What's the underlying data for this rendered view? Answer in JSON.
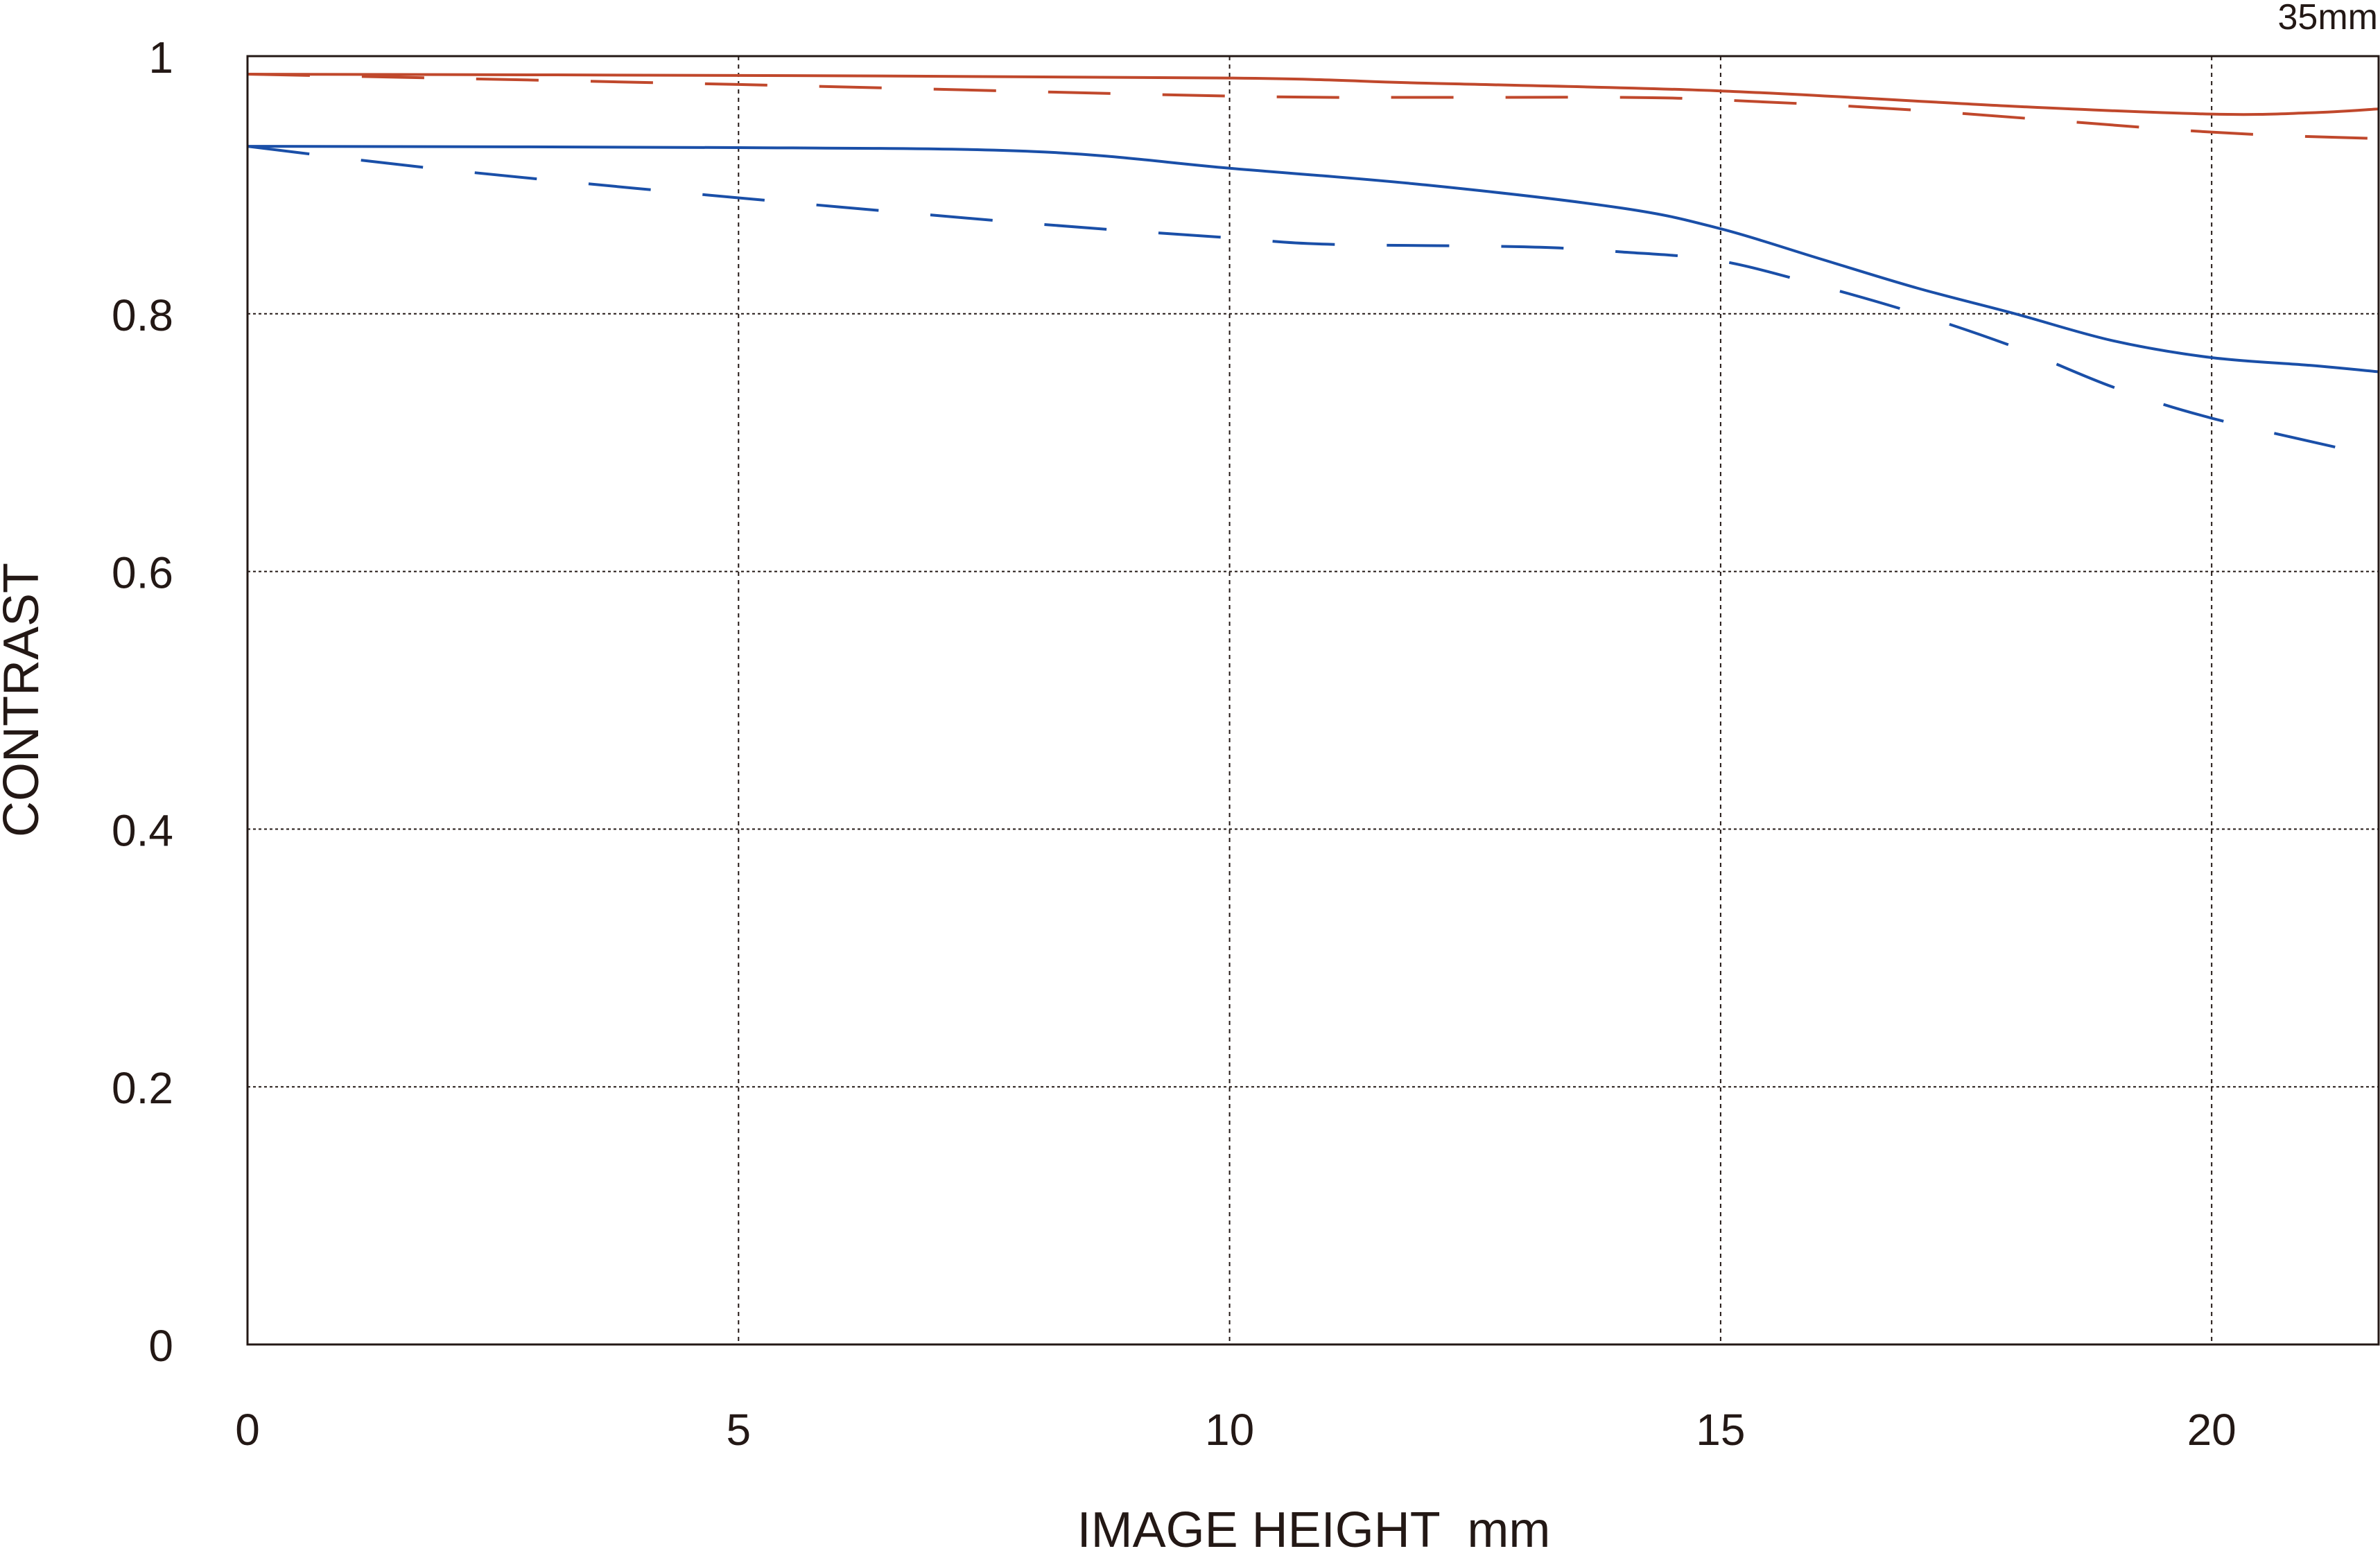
{
  "chart_data": {
    "type": "line",
    "title": "35mm",
    "xlabel": "IMAGE HEIGHT  mm",
    "ylabel": "CONTRAST",
    "xlim": [
      0,
      21.7
    ],
    "ylim": [
      0,
      1
    ],
    "xticks": [
      0,
      5,
      10,
      15,
      20
    ],
    "yticks": [
      0,
      0.2,
      0.4,
      0.6,
      0.8,
      1
    ],
    "xtick_labels": [
      "0",
      "5",
      "10",
      "15",
      "20"
    ],
    "ytick_labels": [
      "0",
      "0.2",
      "0.4",
      "0.6",
      "0.8",
      "1"
    ],
    "grid": true,
    "series": [
      {
        "color": "#c0482c",
        "style": "solid",
        "x": [
          0,
          5,
          10,
          12,
          15,
          18,
          20,
          21,
          21.7
        ],
        "y": [
          0.986,
          0.985,
          0.983,
          0.979,
          0.973,
          0.961,
          0.955,
          0.956,
          0.959
        ]
      },
      {
        "color": "#c0482c",
        "style": "dashed",
        "x": [
          0,
          5,
          10,
          12,
          14,
          15,
          17,
          20,
          21.7
        ],
        "y": [
          0.986,
          0.978,
          0.969,
          0.968,
          0.968,
          0.966,
          0.958,
          0.941,
          0.936
        ]
      },
      {
        "color": "#1a4fa8",
        "style": "solid",
        "x": [
          0,
          5,
          8,
          10,
          12,
          14,
          15,
          16,
          17,
          18,
          19,
          20,
          21,
          21.7
        ],
        "y": [
          0.93,
          0.929,
          0.926,
          0.913,
          0.9,
          0.882,
          0.866,
          0.843,
          0.82,
          0.8,
          0.779,
          0.766,
          0.76,
          0.755
        ]
      },
      {
        "color": "#1a4fa8",
        "style": "dashed",
        "x": [
          0,
          2,
          5,
          8,
          10,
          11,
          13,
          14,
          15,
          16,
          17,
          18,
          19,
          20,
          21.7
        ],
        "y": [
          0.93,
          0.912,
          0.89,
          0.87,
          0.859,
          0.854,
          0.852,
          0.848,
          0.841,
          0.822,
          0.8,
          0.774,
          0.743,
          0.719,
          0.689
        ]
      }
    ]
  }
}
